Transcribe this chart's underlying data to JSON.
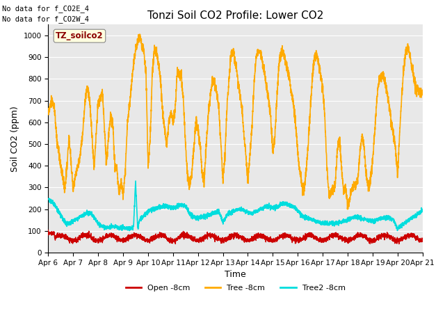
{
  "title": "Tonzi Soil CO2 Profile: Lower CO2",
  "xlabel": "Time",
  "ylabel": "Soil CO2 (ppm)",
  "note_lines": [
    "No data for f_CO2E_4",
    "No data for f_CO2W_4"
  ],
  "legend_label": "TZ_soilco2",
  "ylim": [
    0,
    1050
  ],
  "xlim": [
    0,
    360
  ],
  "xtick_labels": [
    "Apr 6",
    "Apr 7",
    "Apr 8",
    "Apr 9",
    "Apr 10",
    "Apr 11",
    "Apr 12",
    "Apr 13",
    "Apr 14",
    "Apr 15",
    "Apr 16",
    "Apr 17",
    "Apr 18",
    "Apr 19",
    "Apr 20",
    "Apr 21"
  ],
  "xtick_positions": [
    0,
    24,
    48,
    72,
    96,
    120,
    144,
    168,
    192,
    216,
    240,
    264,
    288,
    312,
    336,
    360
  ],
  "ytick_labels": [
    "0",
    "100",
    "200",
    "300",
    "400",
    "500",
    "600",
    "700",
    "800",
    "900",
    "1000"
  ],
  "ytick_positions": [
    0,
    100,
    200,
    300,
    400,
    500,
    600,
    700,
    800,
    900,
    1000
  ],
  "line_colors": {
    "open": "#cc0000",
    "tree": "#ffaa00",
    "tree2": "#00dddd"
  },
  "line_widths": {
    "open": 1.0,
    "tree": 1.2,
    "tree2": 1.2
  },
  "legend_entries": [
    "Open -8cm",
    "Tree -8cm",
    "Tree2 -8cm"
  ],
  "bg_color": "#e8e8e8",
  "fig_color": "#ffffff",
  "grid_color": "#ffffff",
  "title_fontsize": 11,
  "axis_label_fontsize": 9,
  "tick_fontsize": 7.5,
  "note_fontsize": 7.5,
  "legend_fontsize": 8
}
